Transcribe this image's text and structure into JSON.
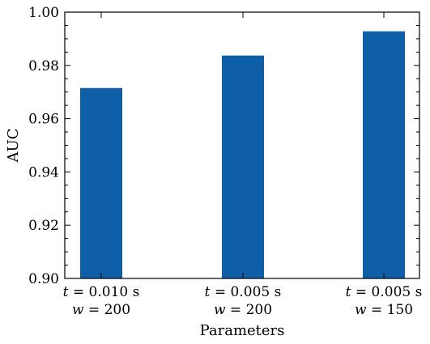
{
  "chart_data": {
    "type": "bar",
    "categories": [
      {
        "line1_var": "t",
        "line1_rest": " = 0.010 s",
        "line2_var": "w",
        "line2_rest": " = 200"
      },
      {
        "line1_var": "t",
        "line1_rest": " = 0.005 s",
        "line2_var": "w",
        "line2_rest": " = 200"
      },
      {
        "line1_var": "t",
        "line1_rest": " = 0.005 s",
        "line2_var": "w",
        "line2_rest": " = 150"
      }
    ],
    "values": [
      0.9715,
      0.9837,
      0.9928
    ],
    "xlabel": "Parameters",
    "ylabel": "AUC",
    "ylim": [
      0.9,
      1.0
    ],
    "yticks": [
      0.9,
      0.92,
      0.94,
      0.96,
      0.98,
      1.0
    ],
    "ytick_labels": [
      "0.90",
      "0.92",
      "0.94",
      "0.96",
      "0.98",
      "1.00"
    ],
    "bar_color": "#0e5fa8",
    "grid": false
  }
}
